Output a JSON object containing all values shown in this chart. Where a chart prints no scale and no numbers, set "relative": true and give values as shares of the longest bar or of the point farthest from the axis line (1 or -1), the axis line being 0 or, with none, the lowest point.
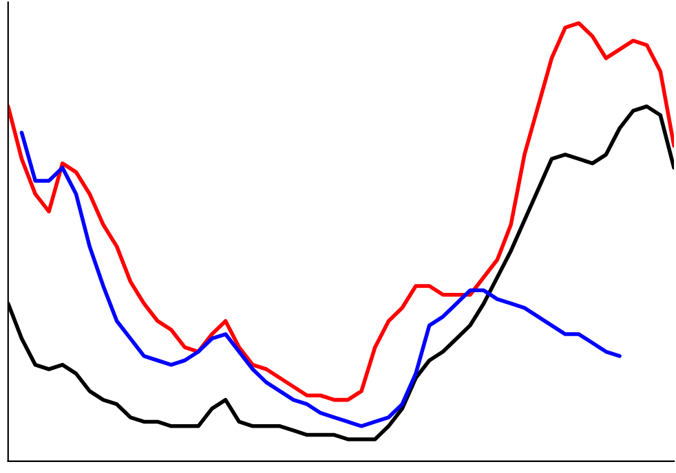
{
  "chart_data": {
    "type": "line",
    "relative": true,
    "grid": false,
    "legend": false,
    "categories": [
      null,
      null,
      null,
      null,
      null,
      null,
      null,
      null,
      null,
      null,
      null,
      null,
      null,
      null,
      null,
      null,
      null,
      null,
      null,
      null,
      null,
      null,
      null,
      null,
      null,
      null,
      null,
      null,
      null,
      null,
      null,
      null,
      null,
      null,
      null,
      null,
      null,
      null,
      null,
      null,
      null,
      null,
      null,
      null,
      null,
      null,
      null,
      null,
      null,
      null
    ],
    "series": [
      {
        "color": "#ff0000",
        "values": [
          0.81,
          0.69,
          0.61,
          0.57,
          0.68,
          0.66,
          0.61,
          0.54,
          0.49,
          0.41,
          0.36,
          0.32,
          0.3,
          0.26,
          0.25,
          0.29,
          0.32,
          0.26,
          0.22,
          0.21,
          0.19,
          0.17,
          0.15,
          0.15,
          0.14,
          0.14,
          0.16,
          0.26,
          0.32,
          0.35,
          0.4,
          0.4,
          0.38,
          0.38,
          0.38,
          0.42,
          0.46,
          0.54,
          0.7,
          0.81,
          0.92,
          0.99,
          1,
          0.97,
          0.92,
          0.94,
          0.96,
          0.95,
          0.89,
          0.72
        ]
      },
      {
        "color": "#000000",
        "values": [
          0.36,
          0.28,
          0.22,
          0.21,
          0.22,
          0.2,
          0.16,
          0.14,
          0.13,
          0.1,
          0.09,
          0.09,
          0.08,
          0.08,
          0.08,
          0.12,
          0.14,
          0.09,
          0.08,
          0.08,
          0.08,
          0.07,
          0.06,
          0.06,
          0.06,
          0.05,
          0.05,
          0.05,
          0.08,
          0.12,
          0.19,
          0.23,
          0.25,
          0.28,
          0.31,
          0.36,
          0.42,
          0.48,
          0.55,
          0.62,
          0.69,
          0.7,
          0.69,
          0.68,
          0.7,
          0.76,
          0.8,
          0.81,
          0.79,
          0.67
        ]
      },
      {
        "color": "#0000ff",
        "values": [
          null,
          0.75,
          0.64,
          0.64,
          0.67,
          0.61,
          0.49,
          0.4,
          0.32,
          0.28,
          0.24,
          0.23,
          0.22,
          0.23,
          0.25,
          0.28,
          0.29,
          0.25,
          0.21,
          0.18,
          0.16,
          0.14,
          0.13,
          0.11,
          0.1,
          0.09,
          0.08,
          0.09,
          0.1,
          0.13,
          0.2,
          0.31,
          0.33,
          0.36,
          0.39,
          0.39,
          0.37,
          0.36,
          0.35,
          0.33,
          0.31,
          0.29,
          0.29,
          0.27,
          0.25,
          0.24,
          null,
          null,
          null,
          null
        ]
      }
    ]
  }
}
